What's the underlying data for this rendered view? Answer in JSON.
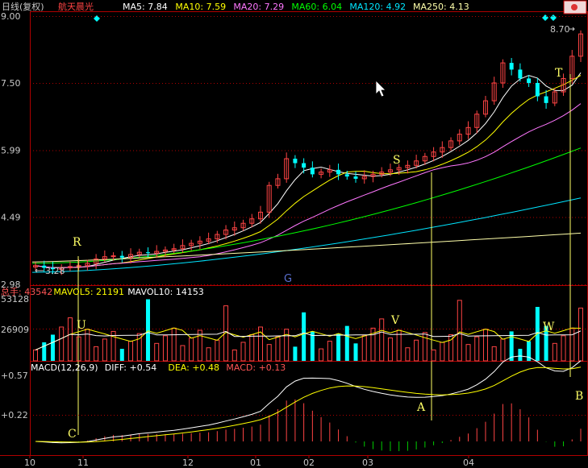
{
  "window": {
    "period_label": "日线(复权)",
    "stock_name": "航天晨光"
  },
  "price_panel": {
    "ma_legend": [
      {
        "label": "MA5: 7.84",
        "color": "#ffffff"
      },
      {
        "label": "MA10: 7.59",
        "color": "#ffff00"
      },
      {
        "label": "MA20: 7.29",
        "color": "#ff77ff"
      },
      {
        "label": "MA60: 6.04",
        "color": "#00ff00"
      },
      {
        "label": "MA120: 4.92",
        "color": "#00e5ff"
      },
      {
        "label": "MA250: 4.13",
        "color": "#ffffaa"
      }
    ],
    "y_ticks": [
      "9.00",
      "7.50",
      "5.99",
      "4.49",
      "2.98"
    ],
    "y_tick_values": [
      9.0,
      7.5,
      5.99,
      4.49,
      2.98
    ],
    "high_label": "8.70",
    "low_label": "3.28",
    "annotations": [
      "R",
      "S",
      "T",
      "G"
    ]
  },
  "volume_panel": {
    "legend": [
      {
        "label": "总手: 43542",
        "color": "#ff5555"
      },
      {
        "label": "MAVOL5: 21191",
        "color": "#ffff00"
      },
      {
        "label": "MAVOL10: 14153",
        "color": "#ffffff"
      }
    ],
    "y_ticks": [
      "53128",
      "26909"
    ],
    "annotations": [
      "U",
      "V",
      "W"
    ]
  },
  "macd_panel": {
    "legend": [
      {
        "label": "MACD(12,26,9)",
        "color": "#ffffff"
      },
      {
        "label": "DIFF: +0.54",
        "color": "#ffffff"
      },
      {
        "label": "DEA: +0.48",
        "color": "#ffff00"
      },
      {
        "label": "MACD: +0.13",
        "color": "#ff5555"
      }
    ],
    "y_ticks": [
      "+0.57",
      "+0.22"
    ],
    "annotations": [
      "C",
      "A",
      "B"
    ]
  },
  "x_axis": {
    "labels": [
      "10",
      "11",
      "12",
      "01",
      "02",
      "03",
      "04"
    ]
  },
  "colors": {
    "up": "#ff4444",
    "down": "#00ffff",
    "frame": "#b00000",
    "annotation": "#ffff66",
    "ma5": "#ffffff",
    "ma10": "#ffff00",
    "ma20": "#ff77ff",
    "ma60": "#00ff00",
    "ma120": "#00e5ff",
    "ma250": "#ffffaa"
  },
  "chart_data": {
    "type": "candlestick",
    "title": "航天晨光 日线(复权)",
    "ylim": [
      2.98,
      9.0
    ],
    "series_close_path": [
      3.4,
      3.35,
      3.32,
      3.35,
      3.38,
      3.4,
      3.45,
      3.55,
      3.6,
      3.62,
      3.58,
      3.65,
      3.7,
      3.68,
      3.72,
      3.75,
      3.78,
      3.85,
      3.9,
      3.95,
      4.0,
      4.1,
      4.2,
      4.25,
      4.35,
      4.45,
      4.6,
      5.2,
      5.35,
      5.8,
      5.7,
      5.6,
      5.45,
      5.5,
      5.55,
      5.45,
      5.4,
      5.35,
      5.4,
      5.45,
      5.5,
      5.55,
      5.6,
      5.65,
      5.75,
      5.85,
      5.95,
      6.05,
      6.2,
      6.35,
      6.5,
      6.8,
      7.1,
      7.5,
      7.95,
      7.8,
      7.6,
      7.5,
      7.2,
      7.05,
      7.3,
      7.6,
      8.1,
      8.6
    ],
    "volume_ticks": [
      53128,
      26909
    ],
    "macd_ticks": [
      0.57,
      0.22
    ],
    "last_values": {
      "MA5": 7.84,
      "MA10": 7.59,
      "MA20": 7.29,
      "MA60": 6.04,
      "MA120": 4.92,
      "MA250": 4.13,
      "volume": 43542,
      "MAVOL5": 21191,
      "MAVOL10": 14153,
      "DIFF": 0.54,
      "DEA": 0.48,
      "MACD": 0.13
    }
  }
}
